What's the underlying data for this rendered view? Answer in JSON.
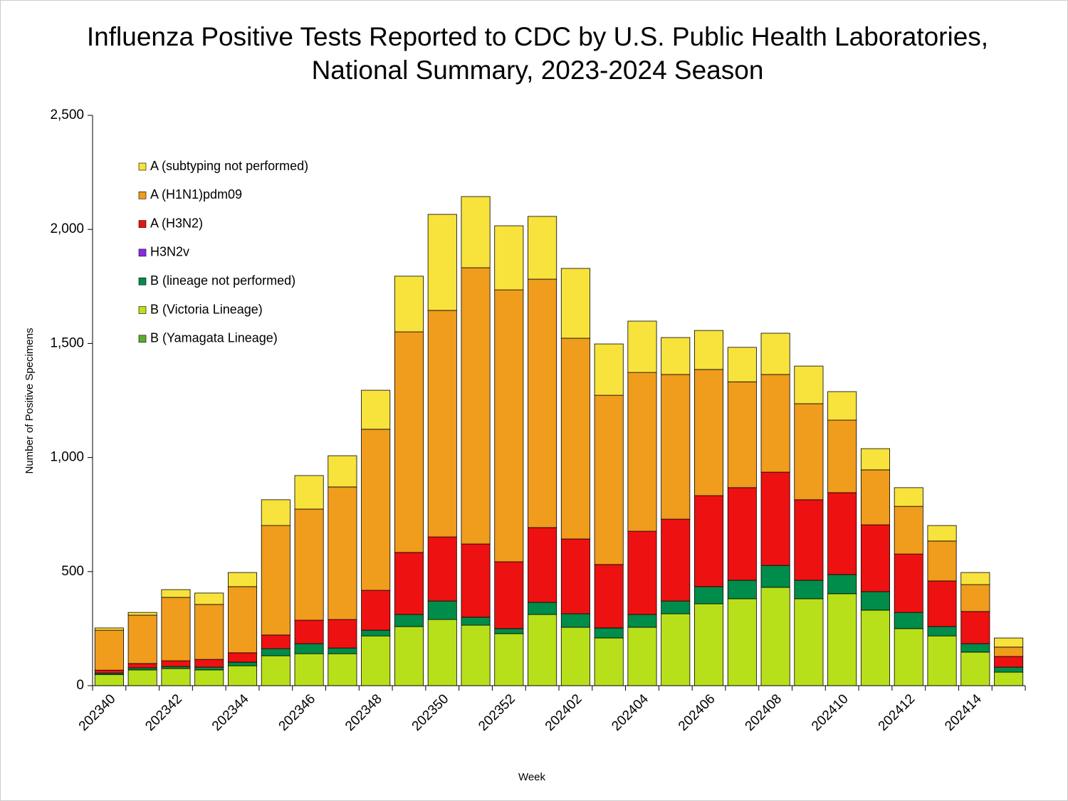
{
  "chart_data": {
    "type": "stacked-bar",
    "title_lines": [
      "Influenza Positive Tests Reported to CDC by U.S. Public Health Laboratories,",
      "National Summary, 2023-2024 Season"
    ],
    "x_label": "Week",
    "y_label": "Number of Positive Specimens",
    "categories": [
      "202340",
      null,
      "202342",
      null,
      "202344",
      null,
      "202346",
      null,
      "202348",
      null,
      "202350",
      null,
      "202352",
      null,
      "202402",
      null,
      "202404",
      null,
      "202406",
      null,
      "202408",
      null,
      "202410",
      null,
      "202412",
      null,
      "202414",
      null
    ],
    "ylim": [
      0,
      2500
    ],
    "yticks": [
      0,
      500,
      {
        "value": 1000,
        "label": "1,000"
      },
      {
        "value": 1500,
        "label": "1,500"
      },
      {
        "value": 2000,
        "label": "2,000"
      },
      {
        "value": 2500,
        "label": "2,500"
      }
    ],
    "legend": "top-left",
    "series": [
      {
        "name": "A (subtyping not performed)",
        "color": "#f7e33c",
        "values": [
          10,
          12,
          34,
          50,
          62,
          113,
          147,
          137,
          171,
          244,
          421,
          312,
          281,
          275,
          306,
          225,
          225,
          162,
          171,
          151,
          181,
          165,
          125,
          93,
          82,
          68,
          53,
          40
        ]
      },
      {
        "name": "A (H1N1)pdm09",
        "color": "#f09c1c",
        "values": [
          175,
          212,
          278,
          241,
          290,
          480,
          487,
          581,
          706,
          967,
          993,
          1211,
          1192,
          1089,
          880,
          742,
          696,
          634,
          553,
          464,
          428,
          421,
          318,
          241,
          209,
          175,
          118,
          41
        ]
      },
      {
        "name": "A (H3N2)",
        "color": "#ee1111",
        "values": [
          13,
          19,
          25,
          34,
          41,
          60,
          103,
          125,
          175,
          272,
          281,
          321,
          293,
          328,
          328,
          278,
          365,
          359,
          399,
          406,
          409,
          353,
          359,
          293,
          256,
          200,
          141,
          47
        ]
      },
      {
        "name": "H3N2v",
        "color": "#8a2be2",
        "values": [
          0,
          0,
          0,
          0,
          0,
          0,
          0,
          0,
          0,
          0,
          0,
          0,
          0,
          0,
          0,
          0,
          0,
          0,
          0,
          0,
          0,
          0,
          0,
          0,
          0,
          0,
          0,
          0
        ]
      },
      {
        "name": "B (lineage not performed)",
        "color": "#008c4a",
        "values": [
          7,
          9,
          9,
          12,
          16,
          31,
          44,
          25,
          25,
          53,
          81,
          35,
          22,
          53,
          59,
          44,
          56,
          56,
          75,
          81,
          96,
          81,
          84,
          81,
          71,
          41,
          37,
          22
        ]
      },
      {
        "name": "B (Victoria Lineage)",
        "color": "#b8e01a",
        "values": [
          48,
          69,
          75,
          69,
          87,
          131,
          140,
          140,
          218,
          259,
          290,
          265,
          228,
          312,
          256,
          209,
          256,
          315,
          359,
          381,
          431,
          381,
          403,
          331,
          250,
          218,
          147,
          59
        ]
      },
      {
        "name": "B (Yamagata Lineage)",
        "color": "#5aae2c",
        "values": [
          0,
          0,
          0,
          0,
          0,
          0,
          0,
          0,
          0,
          0,
          0,
          0,
          0,
          0,
          0,
          0,
          0,
          0,
          0,
          0,
          0,
          0,
          0,
          0,
          0,
          0,
          0,
          0
        ]
      }
    ]
  }
}
